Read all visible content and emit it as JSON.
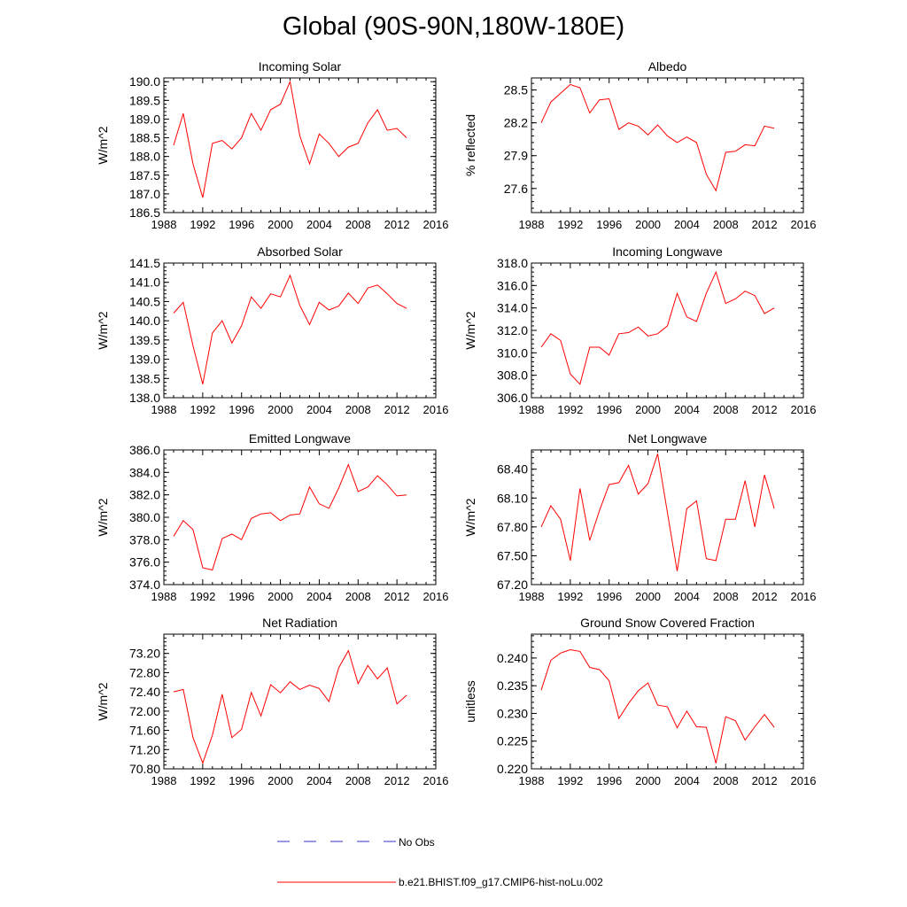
{
  "title": "Global (90S-90N,180W-180E)",
  "legend": {
    "no_obs_label": "No Obs",
    "model_label": "b.e21.BHIST.f09_g17.CMIP6-hist-noLu.002",
    "no_obs_color": "#3030c0",
    "model_color": "#ff0000"
  },
  "chart_data": [
    {
      "type": "line",
      "title": "Incoming Solar",
      "ylabel": "W/m^2",
      "xlim": [
        1988,
        2016
      ],
      "xticks": [
        1988,
        1992,
        1996,
        2000,
        2004,
        2008,
        2012,
        2016
      ],
      "ylim": [
        186.5,
        190.1
      ],
      "yticks": [
        "186.5",
        "187.0",
        "187.5",
        "188.0",
        "188.5",
        "189.0",
        "189.5",
        "190.0"
      ],
      "x": [
        1989,
        1990,
        1991,
        1992,
        1993,
        1994,
        1995,
        1996,
        1997,
        1998,
        1999,
        2000,
        2001,
        2002,
        2003,
        2004,
        2005,
        2006,
        2007,
        2008,
        2009,
        2010,
        2011,
        2012,
        2013
      ],
      "series": [
        {
          "name": "b.e21.BHIST.f09_g17.CMIP6-hist-noLu.002",
          "values": [
            188.3,
            189.15,
            187.8,
            186.9,
            188.35,
            188.43,
            188.2,
            188.5,
            189.15,
            188.7,
            189.25,
            189.4,
            190.0,
            188.55,
            187.8,
            188.6,
            188.35,
            188.0,
            188.25,
            188.35,
            188.9,
            189.25,
            188.7,
            188.75,
            188.5
          ]
        }
      ]
    },
    {
      "type": "line",
      "title": "Albedo",
      "ylabel": "% reflected",
      "xlim": [
        1988,
        2016
      ],
      "xticks": [
        1988,
        1992,
        1996,
        2000,
        2004,
        2008,
        2012,
        2016
      ],
      "ylim": [
        27.38,
        28.61
      ],
      "yticks": [
        "27.6",
        "27.9",
        "28.2",
        "28.5"
      ],
      "x": [
        1989,
        1990,
        1991,
        1992,
        1993,
        1994,
        1995,
        1996,
        1997,
        1998,
        1999,
        2000,
        2001,
        2002,
        2003,
        2004,
        2005,
        2006,
        2007,
        2008,
        2009,
        2010,
        2011,
        2012,
        2013
      ],
      "series": [
        {
          "name": "b.e21.BHIST.f09_g17.CMIP6-hist-noLu.002",
          "values": [
            28.2,
            28.39,
            28.47,
            28.55,
            28.52,
            28.29,
            28.41,
            28.42,
            28.14,
            28.2,
            28.17,
            28.09,
            28.18,
            28.08,
            28.02,
            28.07,
            28.02,
            27.73,
            27.58,
            27.93,
            27.94,
            28.0,
            27.99,
            28.17,
            28.15
          ]
        }
      ]
    },
    {
      "type": "line",
      "title": "Absorbed Solar",
      "ylabel": "W/m^2",
      "xlim": [
        1988,
        2016
      ],
      "xticks": [
        1988,
        1992,
        1996,
        2000,
        2004,
        2008,
        2012,
        2016
      ],
      "ylim": [
        138.0,
        141.5
      ],
      "yticks": [
        "138.0",
        "138.5",
        "139.0",
        "139.5",
        "140.0",
        "140.5",
        "141.0",
        "141.5"
      ],
      "x": [
        1989,
        1990,
        1991,
        1992,
        1993,
        1994,
        1995,
        1996,
        1997,
        1998,
        1999,
        2000,
        2001,
        2002,
        2003,
        2004,
        2005,
        2006,
        2007,
        2008,
        2009,
        2010,
        2011,
        2012,
        2013
      ],
      "series": [
        {
          "name": "b.e21.BHIST.f09_g17.CMIP6-hist-noLu.002",
          "values": [
            140.2,
            140.48,
            139.35,
            138.35,
            139.68,
            140.0,
            139.42,
            139.87,
            140.62,
            140.32,
            140.7,
            140.62,
            141.18,
            140.4,
            139.9,
            140.48,
            140.28,
            140.38,
            140.72,
            140.45,
            140.85,
            140.93,
            140.7,
            140.45,
            140.32
          ]
        }
      ]
    },
    {
      "type": "line",
      "title": "Incoming Longwave",
      "ylabel": "W/m^2",
      "xlim": [
        1988,
        2016
      ],
      "xticks": [
        1988,
        1992,
        1996,
        2000,
        2004,
        2008,
        2012,
        2016
      ],
      "ylim": [
        306.0,
        318.0
      ],
      "yticks": [
        "306.0",
        "308.0",
        "310.0",
        "312.0",
        "314.0",
        "316.0",
        "318.0"
      ],
      "x": [
        1989,
        1990,
        1991,
        1992,
        1993,
        1994,
        1995,
        1996,
        1997,
        1998,
        1999,
        2000,
        2001,
        2002,
        2003,
        2004,
        2005,
        2006,
        2007,
        2008,
        2009,
        2010,
        2011,
        2012,
        2013
      ],
      "series": [
        {
          "name": "b.e21.BHIST.f09_g17.CMIP6-hist-noLu.002",
          "values": [
            310.5,
            311.7,
            311.1,
            308.1,
            307.2,
            310.5,
            310.5,
            309.8,
            311.7,
            311.8,
            312.3,
            311.5,
            311.7,
            312.4,
            315.3,
            313.2,
            312.8,
            315.3,
            317.2,
            314.4,
            314.8,
            315.5,
            315.1,
            313.5,
            314.0
          ]
        }
      ]
    },
    {
      "type": "line",
      "title": "Emitted Longwave",
      "ylabel": "W/m^2",
      "xlim": [
        1988,
        2016
      ],
      "xticks": [
        1988,
        1992,
        1996,
        2000,
        2004,
        2008,
        2012,
        2016
      ],
      "ylim": [
        374.0,
        386.0
      ],
      "yticks": [
        "374.0",
        "376.0",
        "378.0",
        "380.0",
        "382.0",
        "384.0",
        "386.0"
      ],
      "x": [
        1989,
        1990,
        1991,
        1992,
        1993,
        1994,
        1995,
        1996,
        1997,
        1998,
        1999,
        2000,
        2001,
        2002,
        2003,
        2004,
        2005,
        2006,
        2007,
        2008,
        2009,
        2010,
        2011,
        2012,
        2013
      ],
      "series": [
        {
          "name": "b.e21.BHIST.f09_g17.CMIP6-hist-noLu.002",
          "values": [
            378.3,
            379.7,
            378.9,
            375.5,
            375.3,
            378.1,
            378.5,
            378.0,
            379.9,
            380.3,
            380.4,
            379.7,
            380.2,
            380.3,
            382.7,
            381.2,
            380.8,
            382.6,
            384.7,
            382.3,
            382.7,
            383.7,
            382.9,
            381.9,
            382.0
          ]
        }
      ]
    },
    {
      "type": "line",
      "title": "Net Longwave",
      "ylabel": "W/m^2",
      "xlim": [
        1988,
        2016
      ],
      "xticks": [
        1988,
        1992,
        1996,
        2000,
        2004,
        2008,
        2012,
        2016
      ],
      "ylim": [
        67.2,
        68.6
      ],
      "yticks": [
        "67.20",
        "67.50",
        "67.80",
        "68.10",
        "68.40"
      ],
      "x": [
        1989,
        1990,
        1991,
        1992,
        1993,
        1994,
        1995,
        1996,
        1997,
        1998,
        1999,
        2000,
        2001,
        2002,
        2003,
        2004,
        2005,
        2006,
        2007,
        2008,
        2009,
        2010,
        2011,
        2012,
        2013
      ],
      "series": [
        {
          "name": "b.e21.BHIST.f09_g17.CMIP6-hist-noLu.002",
          "values": [
            67.8,
            68.02,
            67.88,
            67.45,
            68.2,
            67.66,
            67.97,
            68.24,
            68.26,
            68.44,
            68.14,
            68.25,
            68.56,
            67.95,
            67.34,
            67.99,
            68.07,
            67.47,
            67.45,
            67.88,
            67.88,
            68.28,
            67.8,
            68.34,
            67.99
          ]
        }
      ]
    },
    {
      "type": "line",
      "title": "Net Radiation",
      "ylabel": "W/m^2",
      "xlim": [
        1988,
        2016
      ],
      "xticks": [
        1988,
        1992,
        1996,
        2000,
        2004,
        2008,
        2012,
        2016
      ],
      "ylim": [
        70.8,
        73.6
      ],
      "yticks": [
        "70.80",
        "71.20",
        "71.60",
        "72.00",
        "72.40",
        "72.80",
        "73.20"
      ],
      "x": [
        1989,
        1990,
        1991,
        1992,
        1993,
        1994,
        1995,
        1996,
        1997,
        1998,
        1999,
        2000,
        2001,
        2002,
        2003,
        2004,
        2005,
        2006,
        2007,
        2008,
        2009,
        2010,
        2011,
        2012,
        2013
      ],
      "series": [
        {
          "name": "b.e21.BHIST.f09_g17.CMIP6-hist-noLu.002",
          "values": [
            72.4,
            72.45,
            71.45,
            70.92,
            71.5,
            72.35,
            71.45,
            71.62,
            72.39,
            71.9,
            72.55,
            72.38,
            72.61,
            72.45,
            72.54,
            72.47,
            72.2,
            72.9,
            73.26,
            72.57,
            72.95,
            72.67,
            72.9,
            72.15,
            72.33
          ]
        }
      ]
    },
    {
      "type": "line",
      "title": "Ground Snow Covered Fraction",
      "ylabel": "unitless",
      "xlim": [
        1988,
        2016
      ],
      "xticks": [
        1988,
        1992,
        1996,
        2000,
        2004,
        2008,
        2012,
        2016
      ],
      "ylim": [
        0.22,
        0.2443
      ],
      "yticks": [
        "0.220",
        "0.225",
        "0.230",
        "0.235",
        "0.240"
      ],
      "x": [
        1989,
        1990,
        1991,
        1992,
        1993,
        1994,
        1995,
        1996,
        1997,
        1998,
        1999,
        2000,
        2001,
        2002,
        2003,
        2004,
        2005,
        2006,
        2007,
        2008,
        2009,
        2010,
        2011,
        2012,
        2013
      ],
      "series": [
        {
          "name": "b.e21.BHIST.f09_g17.CMIP6-hist-noLu.002",
          "values": [
            0.2342,
            0.2396,
            0.2409,
            0.2415,
            0.2412,
            0.2383,
            0.2379,
            0.2359,
            0.2291,
            0.2318,
            0.2341,
            0.2355,
            0.2315,
            0.2312,
            0.2274,
            0.2304,
            0.2276,
            0.2275,
            0.221,
            0.2294,
            0.2287,
            0.2252,
            0.2276,
            0.2298,
            0.2275
          ]
        }
      ]
    }
  ]
}
